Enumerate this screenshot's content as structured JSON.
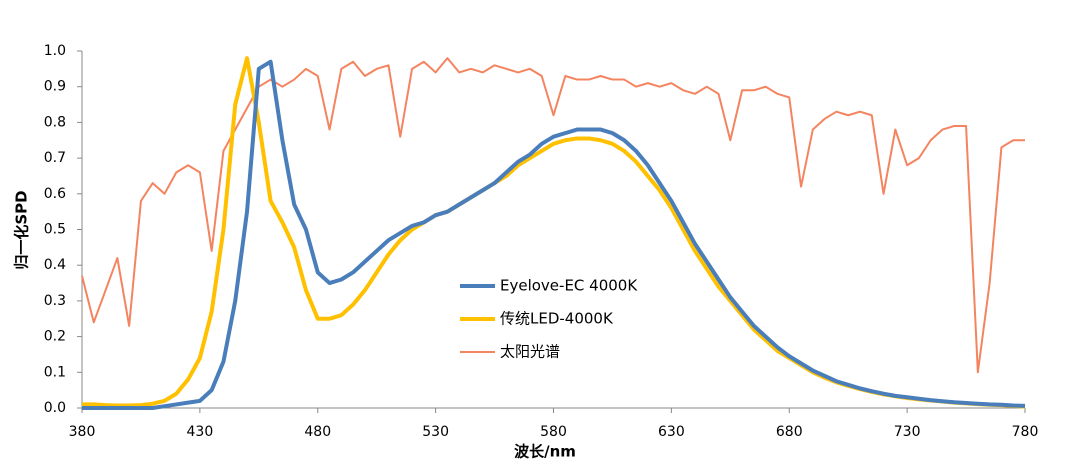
{
  "chart_data": {
    "type": "line",
    "xlabel": "波长/nm",
    "ylabel": "归一化SPD",
    "x": [
      380,
      385,
      390,
      395,
      400,
      405,
      410,
      415,
      420,
      425,
      430,
      435,
      440,
      445,
      450,
      455,
      460,
      465,
      470,
      475,
      480,
      485,
      490,
      495,
      500,
      505,
      510,
      515,
      520,
      525,
      530,
      535,
      540,
      545,
      550,
      555,
      560,
      565,
      570,
      575,
      580,
      585,
      590,
      595,
      600,
      605,
      610,
      615,
      620,
      625,
      630,
      635,
      640,
      645,
      650,
      655,
      660,
      665,
      670,
      675,
      680,
      685,
      690,
      695,
      700,
      705,
      710,
      715,
      720,
      725,
      730,
      735,
      740,
      745,
      750,
      755,
      760,
      765,
      770,
      775,
      780
    ],
    "series": [
      {
        "name": "Eyelove-EC 4000K",
        "color": "#4a7ebb",
        "width": 4,
        "values": [
          0,
          0,
          0,
          0,
          0,
          0,
          0,
          0.005,
          0.01,
          0.015,
          0.02,
          0.05,
          0.13,
          0.3,
          0.55,
          0.95,
          0.97,
          0.75,
          0.57,
          0.5,
          0.38,
          0.35,
          0.36,
          0.38,
          0.41,
          0.44,
          0.47,
          0.49,
          0.51,
          0.52,
          0.54,
          0.55,
          0.57,
          0.59,
          0.61,
          0.63,
          0.66,
          0.69,
          0.71,
          0.74,
          0.76,
          0.77,
          0.78,
          0.78,
          0.78,
          0.77,
          0.75,
          0.72,
          0.68,
          0.63,
          0.58,
          0.52,
          0.46,
          0.41,
          0.36,
          0.31,
          0.27,
          0.23,
          0.2,
          0.17,
          0.145,
          0.125,
          0.105,
          0.09,
          0.075,
          0.065,
          0.055,
          0.047,
          0.04,
          0.034,
          0.03,
          0.026,
          0.022,
          0.019,
          0.016,
          0.014,
          0.012,
          0.01,
          0.009,
          0.007,
          0.006
        ]
      },
      {
        "name": "传统LED-4000K",
        "color": "#ffc000",
        "width": 4,
        "values": [
          0.01,
          0.01,
          0.008,
          0.007,
          0.007,
          0.008,
          0.012,
          0.02,
          0.04,
          0.08,
          0.14,
          0.27,
          0.5,
          0.85,
          0.98,
          0.8,
          0.58,
          0.52,
          0.45,
          0.33,
          0.25,
          0.25,
          0.26,
          0.29,
          0.33,
          0.38,
          0.43,
          0.47,
          0.5,
          0.52,
          0.54,
          0.55,
          0.57,
          0.59,
          0.61,
          0.63,
          0.65,
          0.68,
          0.7,
          0.72,
          0.74,
          0.75,
          0.755,
          0.755,
          0.75,
          0.74,
          0.72,
          0.69,
          0.65,
          0.61,
          0.56,
          0.5,
          0.44,
          0.39,
          0.34,
          0.3,
          0.26,
          0.22,
          0.19,
          0.16,
          0.14,
          0.12,
          0.1,
          0.085,
          0.072,
          0.062,
          0.053,
          0.045,
          0.038,
          0.033,
          0.028,
          0.024,
          0.021,
          0.018,
          0.015,
          0.013,
          0.011,
          0.009,
          0.008,
          0.006,
          0.004
        ]
      },
      {
        "name": "太阳光谱",
        "color": "#f4845f",
        "width": 2,
        "values": [
          0.37,
          0.24,
          0.33,
          0.42,
          0.23,
          0.58,
          0.63,
          0.6,
          0.66,
          0.68,
          0.66,
          0.44,
          0.72,
          0.78,
          0.84,
          0.9,
          0.92,
          0.9,
          0.92,
          0.95,
          0.93,
          0.78,
          0.95,
          0.97,
          0.93,
          0.95,
          0.96,
          0.76,
          0.95,
          0.97,
          0.94,
          0.98,
          0.94,
          0.95,
          0.94,
          0.96,
          0.95,
          0.94,
          0.95,
          0.93,
          0.82,
          0.93,
          0.92,
          0.92,
          0.93,
          0.92,
          0.92,
          0.9,
          0.91,
          0.9,
          0.91,
          0.89,
          0.88,
          0.9,
          0.88,
          0.75,
          0.89,
          0.89,
          0.9,
          0.88,
          0.87,
          0.62,
          0.78,
          0.81,
          0.83,
          0.82,
          0.83,
          0.82,
          0.6,
          0.78,
          0.68,
          0.7,
          0.75,
          0.78,
          0.79,
          0.79,
          0.1,
          0.35,
          0.73,
          0.75,
          0.75
        ]
      }
    ],
    "xlim": [
      380,
      780
    ],
    "xticks": [
      380,
      430,
      480,
      530,
      580,
      630,
      680,
      730,
      780
    ],
    "ylim": [
      0,
      1
    ],
    "yticks": [
      {
        "value": 0,
        "label": "0.0"
      },
      0.1,
      0.2,
      0.3,
      0.4,
      0.5,
      0.6,
      0.7,
      0.8,
      0.9,
      {
        "value": 1,
        "label": "1.0"
      }
    ],
    "grid": false
  }
}
